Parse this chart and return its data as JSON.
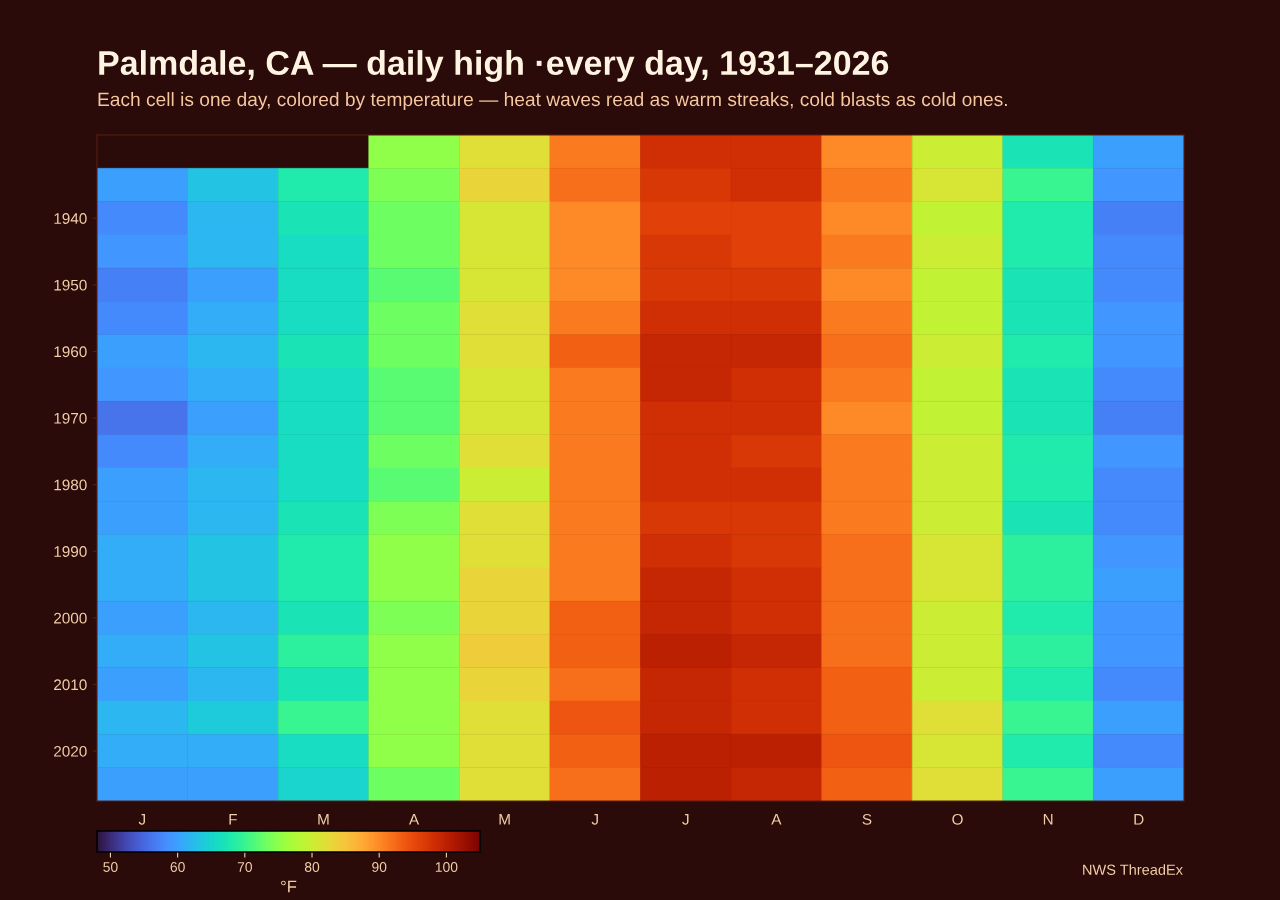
{
  "chart_data": {
    "type": "heatmap",
    "title": "Palmdale, CA — daily high ·every day, 1931–2026",
    "subtitle": "Each cell is one day, colored by temperature — heat waves read as warm streaks, cold blasts as cold ones.",
    "clabel": "°F",
    "annotations": [
      "NWS ThreadEx"
    ],
    "categories": [
      "J",
      "F",
      "M",
      "A",
      "M",
      "J",
      "J",
      "A",
      "S",
      "O",
      "N",
      "D"
    ],
    "y_categories": [
      null,
      null,
      "1940",
      null,
      "1950",
      null,
      "1960",
      null,
      "1970",
      null,
      "1980",
      null,
      "1990",
      null,
      "2000",
      null,
      "2010",
      null,
      "2020",
      null
    ],
    "cells": [
      [
        null,
        null,
        null,
        75,
        82,
        91,
        98,
        98,
        90,
        80,
        67,
        60
      ],
      [
        60,
        63,
        68,
        74,
        83,
        92,
        97,
        98,
        91,
        81,
        70,
        59
      ],
      [
        58,
        62,
        67,
        73,
        81,
        90,
        96,
        96,
        90,
        79,
        68,
        57
      ],
      [
        59,
        62,
        66,
        73,
        81,
        90,
        97,
        96,
        91,
        80,
        68,
        58
      ],
      [
        57,
        60,
        66,
        72,
        81,
        90,
        97,
        97,
        90,
        79,
        67,
        58
      ],
      [
        58,
        61,
        66,
        73,
        82,
        91,
        98,
        98,
        91,
        79,
        67,
        59
      ],
      [
        60,
        62,
        67,
        73,
        82,
        93,
        99,
        99,
        92,
        80,
        68,
        59
      ],
      [
        59,
        61,
        66,
        72,
        81,
        91,
        99,
        98,
        91,
        79,
        67,
        58
      ],
      [
        56,
        60,
        66,
        72,
        81,
        91,
        98,
        98,
        90,
        79,
        67,
        57
      ],
      [
        58,
        61,
        66,
        73,
        82,
        91,
        98,
        97,
        91,
        80,
        68,
        59
      ],
      [
        60,
        62,
        66,
        72,
        80,
        91,
        98,
        98,
        91,
        80,
        68,
        58
      ],
      [
        60,
        62,
        67,
        74,
        82,
        91,
        97,
        97,
        91,
        80,
        67,
        58
      ],
      [
        61,
        63,
        68,
        75,
        82,
        91,
        98,
        97,
        92,
        81,
        69,
        59
      ],
      [
        61,
        63,
        68,
        75,
        83,
        91,
        99,
        98,
        92,
        81,
        69,
        60
      ],
      [
        60,
        62,
        67,
        74,
        83,
        93,
        99,
        98,
        92,
        80,
        68,
        59
      ],
      [
        61,
        63,
        69,
        75,
        84,
        93,
        100,
        99,
        92,
        80,
        69,
        59
      ],
      [
        60,
        62,
        67,
        75,
        83,
        92,
        99,
        98,
        93,
        80,
        68,
        58
      ],
      [
        62,
        64,
        70,
        75,
        82,
        94,
        99,
        98,
        93,
        82,
        70,
        60
      ],
      [
        61,
        61,
        66,
        75,
        82,
        93,
        100,
        100,
        94,
        81,
        68,
        58
      ],
      [
        60,
        60,
        65,
        73,
        82,
        92,
        100,
        99,
        93,
        82,
        70,
        60
      ]
    ],
    "clim": [
      48,
      105
    ],
    "cticks": [
      50,
      60,
      70,
      80,
      90,
      100
    ]
  }
}
